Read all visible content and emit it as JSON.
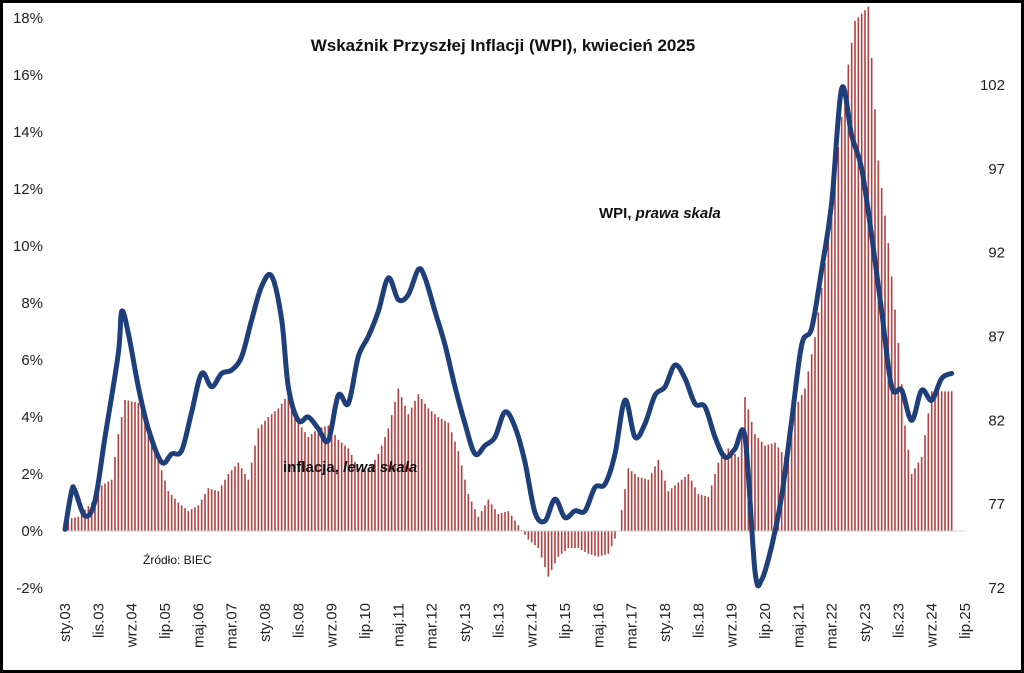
{
  "chart_data": {
    "type": "bar+line",
    "title": "Wskaźnik Przyszłej Inflacji (WPI), kwiecień 2025",
    "source": "Źródło: BIEC",
    "colors": {
      "inflation": "#b0413e",
      "wpi": "#1f3f7a"
    },
    "left_axis": {
      "ylim": [
        -2,
        18
      ],
      "ticks": [
        "-2%",
        "0%",
        "2%",
        "4%",
        "6%",
        "8%",
        "10%",
        "12%",
        "14%",
        "16%",
        "18%"
      ]
    },
    "right_axis": {
      "ylim": [
        72,
        106
      ],
      "ticks": [
        "72",
        "77",
        "82",
        "87",
        "92",
        "97",
        "102"
      ]
    },
    "x_axis": {
      "start": "2003-01",
      "end": "2025-07",
      "ticks": [
        {
          "label": "sty.03",
          "date": "2003-01"
        },
        {
          "label": "lis.03",
          "date": "2003-11"
        },
        {
          "label": "wrz.04",
          "date": "2004-09"
        },
        {
          "label": "lip.05",
          "date": "2005-07"
        },
        {
          "label": "maj.06",
          "date": "2006-05"
        },
        {
          "label": "mar.07",
          "date": "2007-03"
        },
        {
          "label": "sty.08",
          "date": "2008-01"
        },
        {
          "label": "lis.08",
          "date": "2008-11"
        },
        {
          "label": "wrz.09",
          "date": "2009-09"
        },
        {
          "label": "lip.10",
          "date": "2010-07"
        },
        {
          "label": "maj.11",
          "date": "2011-05"
        },
        {
          "label": "mar.12",
          "date": "2012-03"
        },
        {
          "label": "sty.13",
          "date": "2013-01"
        },
        {
          "label": "lis.13",
          "date": "2013-11"
        },
        {
          "label": "wrz.14",
          "date": "2014-09"
        },
        {
          "label": "lip.15",
          "date": "2015-07"
        },
        {
          "label": "maj.16",
          "date": "2016-05"
        },
        {
          "label": "mar.17",
          "date": "2017-03"
        },
        {
          "label": "sty.18",
          "date": "2018-01"
        },
        {
          "label": "lis.18",
          "date": "2018-11"
        },
        {
          "label": "wrz.19",
          "date": "2019-09"
        },
        {
          "label": "lip.20",
          "date": "2020-07"
        },
        {
          "label": "maj.21",
          "date": "2021-05"
        },
        {
          "label": "mar.22",
          "date": "2022-03"
        },
        {
          "label": "sty.23",
          "date": "2023-01"
        },
        {
          "label": "lis.23",
          "date": "2023-11"
        },
        {
          "label": "wrz.24",
          "date": "2024-09"
        },
        {
          "label": "lip.25",
          "date": "2025-07"
        }
      ]
    },
    "series": [
      {
        "name": "inflacja, lewa skala",
        "type": "bar",
        "axis": "left",
        "unit": "%",
        "points": [
          [
            "2003-01",
            0.4
          ],
          [
            "2003-05",
            0.5
          ],
          [
            "2003-09",
            1.0
          ],
          [
            "2003-12",
            1.6
          ],
          [
            "2004-03",
            1.8
          ],
          [
            "2004-05",
            3.4
          ],
          [
            "2004-07",
            4.6
          ],
          [
            "2004-11",
            4.5
          ],
          [
            "2005-02",
            3.6
          ],
          [
            "2005-05",
            2.5
          ],
          [
            "2005-08",
            1.4
          ],
          [
            "2005-11",
            1.0
          ],
          [
            "2006-02",
            0.7
          ],
          [
            "2006-05",
            0.9
          ],
          [
            "2006-08",
            1.5
          ],
          [
            "2006-11",
            1.4
          ],
          [
            "2007-02",
            2.0
          ],
          [
            "2007-05",
            2.4
          ],
          [
            "2007-08",
            1.8
          ],
          [
            "2007-11",
            3.6
          ],
          [
            "2008-02",
            4.0
          ],
          [
            "2008-05",
            4.3
          ],
          [
            "2008-08",
            4.8
          ],
          [
            "2008-11",
            3.8
          ],
          [
            "2009-02",
            3.3
          ],
          [
            "2009-05",
            3.6
          ],
          [
            "2009-08",
            3.7
          ],
          [
            "2009-11",
            3.2
          ],
          [
            "2010-02",
            2.9
          ],
          [
            "2010-05",
            2.2
          ],
          [
            "2010-08",
            2.1
          ],
          [
            "2010-11",
            2.7
          ],
          [
            "2011-02",
            3.6
          ],
          [
            "2011-05",
            5.0
          ],
          [
            "2011-08",
            4.1
          ],
          [
            "2011-11",
            4.8
          ],
          [
            "2012-02",
            4.3
          ],
          [
            "2012-05",
            4.0
          ],
          [
            "2012-08",
            3.8
          ],
          [
            "2012-11",
            2.8
          ],
          [
            "2013-02",
            1.3
          ],
          [
            "2013-05",
            0.5
          ],
          [
            "2013-08",
            1.1
          ],
          [
            "2013-11",
            0.6
          ],
          [
            "2014-02",
            0.7
          ],
          [
            "2014-05",
            0.2
          ],
          [
            "2014-08",
            -0.3
          ],
          [
            "2014-11",
            -0.6
          ],
          [
            "2015-02",
            -1.6
          ],
          [
            "2015-05",
            -0.9
          ],
          [
            "2015-08",
            -0.6
          ],
          [
            "2015-11",
            -0.6
          ],
          [
            "2016-02",
            -0.8
          ],
          [
            "2016-05",
            -0.9
          ],
          [
            "2016-08",
            -0.8
          ],
          [
            "2016-11",
            0.0
          ],
          [
            "2017-02",
            2.2
          ],
          [
            "2017-05",
            1.9
          ],
          [
            "2017-08",
            1.8
          ],
          [
            "2017-11",
            2.5
          ],
          [
            "2018-02",
            1.4
          ],
          [
            "2018-05",
            1.7
          ],
          [
            "2018-08",
            2.0
          ],
          [
            "2018-11",
            1.3
          ],
          [
            "2019-02",
            1.2
          ],
          [
            "2019-05",
            2.4
          ],
          [
            "2019-08",
            2.9
          ],
          [
            "2019-11",
            2.6
          ],
          [
            "2020-01",
            4.7
          ],
          [
            "2020-04",
            3.4
          ],
          [
            "2020-07",
            3.0
          ],
          [
            "2020-10",
            3.1
          ],
          [
            "2021-01",
            2.6
          ],
          [
            "2021-04",
            4.3
          ],
          [
            "2021-07",
            5.0
          ],
          [
            "2021-10",
            6.8
          ],
          [
            "2022-01",
            9.4
          ],
          [
            "2022-04",
            12.4
          ],
          [
            "2022-07",
            15.6
          ],
          [
            "2022-10",
            17.9
          ],
          [
            "2023-02",
            18.4
          ],
          [
            "2023-05",
            13.0
          ],
          [
            "2023-08",
            10.1
          ],
          [
            "2023-11",
            6.6
          ],
          [
            "2024-01",
            3.7
          ],
          [
            "2024-03",
            2.0
          ],
          [
            "2024-06",
            2.6
          ],
          [
            "2024-09",
            4.9
          ],
          [
            "2025-01",
            4.9
          ],
          [
            "2025-03",
            4.9
          ]
        ]
      },
      {
        "name": "WPI, prawa skala",
        "type": "line",
        "axis": "right",
        "points": [
          [
            "2003-01",
            75.5
          ],
          [
            "2003-03",
            77.8
          ],
          [
            "2003-04",
            77.8
          ],
          [
            "2003-07",
            76.3
          ],
          [
            "2003-10",
            77.2
          ],
          [
            "2004-01",
            81.0
          ],
          [
            "2004-05",
            86.0
          ],
          [
            "2004-06",
            88.5
          ],
          [
            "2004-08",
            87.2
          ],
          [
            "2004-11",
            84.0
          ],
          [
            "2005-02",
            81.5
          ],
          [
            "2005-06",
            79.5
          ],
          [
            "2005-09",
            80.0
          ],
          [
            "2005-12",
            80.2
          ],
          [
            "2006-03",
            82.5
          ],
          [
            "2006-06",
            84.8
          ],
          [
            "2006-09",
            84.0
          ],
          [
            "2006-12",
            84.8
          ],
          [
            "2007-03",
            85.0
          ],
          [
            "2007-06",
            85.8
          ],
          [
            "2007-09",
            88.0
          ],
          [
            "2007-12",
            90.0
          ],
          [
            "2008-03",
            90.6
          ],
          [
            "2008-06",
            88.0
          ],
          [
            "2008-08",
            84.0
          ],
          [
            "2008-11",
            82.0
          ],
          [
            "2009-02",
            82.2
          ],
          [
            "2009-05",
            81.5
          ],
          [
            "2009-08",
            80.8
          ],
          [
            "2009-11",
            83.5
          ],
          [
            "2010-02",
            83.0
          ],
          [
            "2010-05",
            85.8
          ],
          [
            "2010-08",
            87.0
          ],
          [
            "2010-11",
            88.5
          ],
          [
            "2011-02",
            90.5
          ],
          [
            "2011-05",
            89.2
          ],
          [
            "2011-08",
            89.5
          ],
          [
            "2011-11",
            91.0
          ],
          [
            "2012-01",
            90.5
          ],
          [
            "2012-04",
            88.5
          ],
          [
            "2012-07",
            86.5
          ],
          [
            "2012-10",
            84.0
          ],
          [
            "2013-01",
            81.8
          ],
          [
            "2013-04",
            80.0
          ],
          [
            "2013-07",
            80.5
          ],
          [
            "2013-10",
            81.0
          ],
          [
            "2014-01",
            82.5
          ],
          [
            "2014-04",
            81.6
          ],
          [
            "2014-07",
            79.5
          ],
          [
            "2014-10",
            76.5
          ],
          [
            "2015-01",
            76.0
          ],
          [
            "2015-04",
            77.3
          ],
          [
            "2015-07",
            76.2
          ],
          [
            "2015-10",
            76.6
          ],
          [
            "2016-01",
            76.6
          ],
          [
            "2016-04",
            78.0
          ],
          [
            "2016-07",
            78.2
          ],
          [
            "2016-10",
            80.0
          ],
          [
            "2017-01",
            83.2
          ],
          [
            "2017-04",
            81.0
          ],
          [
            "2017-07",
            81.8
          ],
          [
            "2017-10",
            83.5
          ],
          [
            "2018-01",
            84.0
          ],
          [
            "2018-04",
            85.3
          ],
          [
            "2018-07",
            84.5
          ],
          [
            "2018-10",
            83.0
          ],
          [
            "2019-01",
            82.8
          ],
          [
            "2019-04",
            81.0
          ],
          [
            "2019-07",
            79.8
          ],
          [
            "2019-10",
            80.3
          ],
          [
            "2020-01",
            81.0
          ],
          [
            "2020-04",
            73.0
          ],
          [
            "2020-06",
            72.5
          ],
          [
            "2020-09",
            74.5
          ],
          [
            "2020-12",
            77.5
          ],
          [
            "2021-03",
            82.0
          ],
          [
            "2021-06",
            86.5
          ],
          [
            "2021-09",
            87.5
          ],
          [
            "2021-12",
            91.0
          ],
          [
            "2022-03",
            95.0
          ],
          [
            "2022-06",
            101.8
          ],
          [
            "2022-09",
            99.0
          ],
          [
            "2022-12",
            97.0
          ],
          [
            "2023-03",
            93.0
          ],
          [
            "2023-06",
            88.5
          ],
          [
            "2023-09",
            84.0
          ],
          [
            "2023-12",
            83.8
          ],
          [
            "2024-03",
            82.0
          ],
          [
            "2024-06",
            83.8
          ],
          [
            "2024-09",
            83.2
          ],
          [
            "2024-12",
            84.5
          ],
          [
            "2025-03",
            84.8
          ]
        ]
      }
    ],
    "annotations": {
      "wpi_label": {
        "plain": "WPI, ",
        "italic": "prawa skala"
      },
      "inflation_label": {
        "plain": "inflacja, ",
        "italic": "lewa skala"
      }
    },
    "grid": false,
    "legend": "none"
  }
}
